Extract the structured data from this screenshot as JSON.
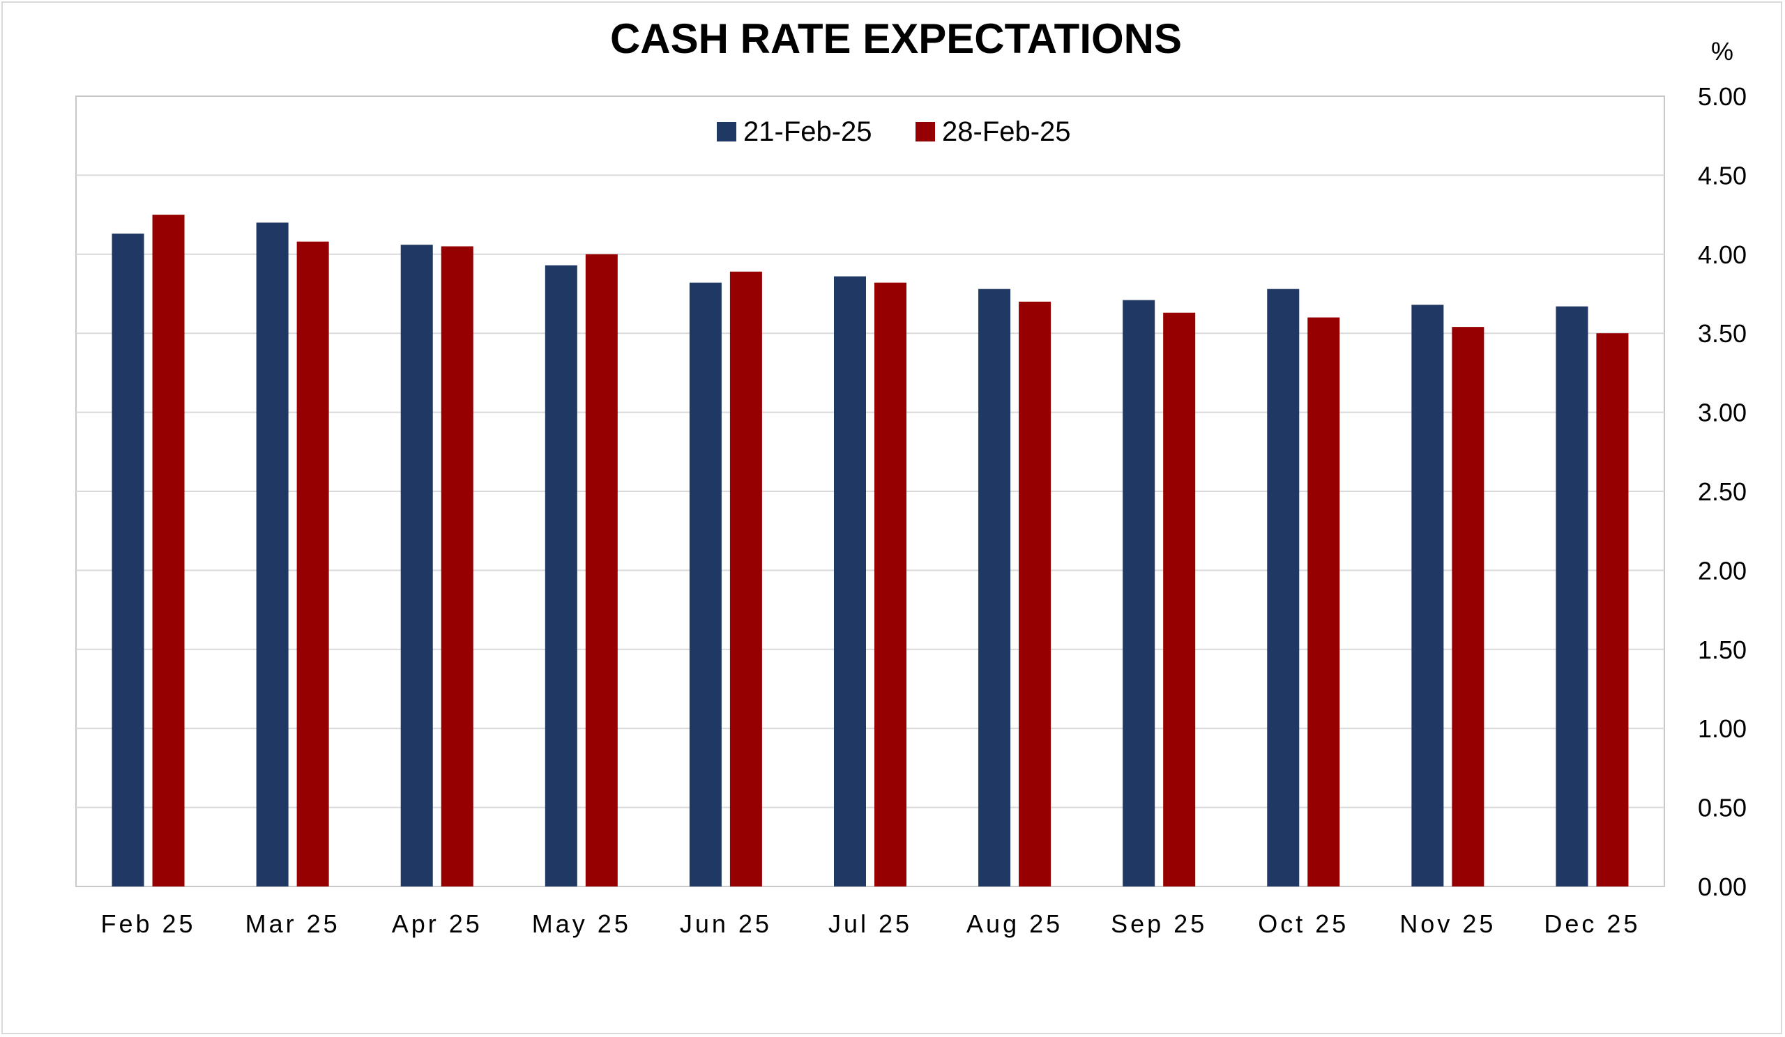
{
  "chart_data": {
    "type": "bar",
    "title": "CASH RATE EXPECTATIONS",
    "y_unit": "%",
    "categories": [
      "Feb 25",
      "Mar 25",
      "Apr 25",
      "May 25",
      "Jun 25",
      "Jul 25",
      "Aug 25",
      "Sep 25",
      "Oct 25",
      "Nov 25",
      "Dec 25"
    ],
    "series": [
      {
        "name": "21-Feb-25",
        "color": "#1f3864",
        "values": [
          4.13,
          4.2,
          4.06,
          3.93,
          3.82,
          3.86,
          3.78,
          3.71,
          3.78,
          3.68,
          3.67
        ]
      },
      {
        "name": "28-Feb-25",
        "color": "#960000",
        "values": [
          4.25,
          4.08,
          4.05,
          4.0,
          3.89,
          3.82,
          3.7,
          3.63,
          3.6,
          3.54,
          3.5
        ]
      }
    ],
    "ylim": [
      0,
      5
    ],
    "yticks": [
      "0.00",
      "0.50",
      "1.00",
      "1.50",
      "2.00",
      "2.50",
      "3.00",
      "3.50",
      "4.00",
      "4.50",
      "5.00"
    ],
    "y_axis_side": "right",
    "grid": true,
    "legend_position": "top-center"
  }
}
